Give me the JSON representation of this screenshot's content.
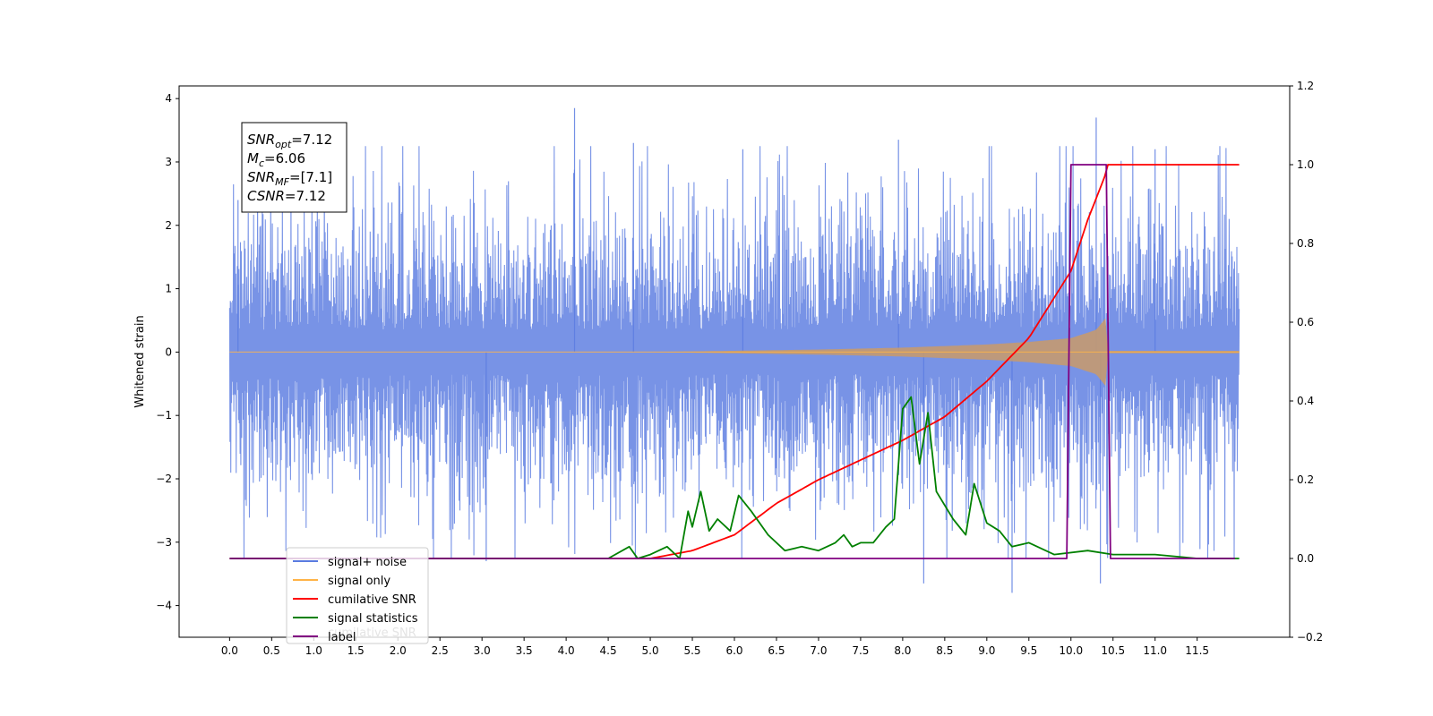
{
  "chart_data": {
    "type": "line",
    "ylabel": "Whitened strain",
    "left_axis": {
      "ylim": [
        -4.5,
        4.2
      ],
      "ticks": [
        4,
        3,
        2,
        1,
        0,
        -1,
        -2,
        -3,
        -4
      ],
      "tick_labels": [
        "4",
        "3",
        "2",
        "1",
        "0",
        "−1",
        "−2",
        "−3",
        "−4"
      ]
    },
    "right_axis": {
      "ylim": [
        -0.2,
        1.2
      ],
      "ticks": [
        1.2,
        1.0,
        0.8,
        0.6,
        0.4,
        0.2,
        0.0,
        -0.2
      ],
      "tick_labels": [
        "1.2",
        "1.0",
        "0.8",
        "0.6",
        "0.4",
        "0.2",
        "0.0",
        "−0.2"
      ]
    },
    "xlim": [
      -0.6,
      12.6
    ],
    "xticks": [
      0.0,
      0.5,
      1.0,
      1.5,
      2.0,
      2.5,
      3.0,
      3.5,
      4.0,
      4.5,
      5.0,
      5.5,
      6.0,
      6.5,
      7.0,
      7.5,
      8.0,
      8.5,
      9.0,
      9.5,
      10.0,
      10.5,
      11.0,
      11.5
    ],
    "xtick_labels": [
      "0.0",
      "0.5",
      "1.0",
      "1.5",
      "2.0",
      "2.5",
      "3.0",
      "3.5",
      "4.0",
      "4.5",
      "5.0",
      "5.5",
      "6.0",
      "6.5",
      "7.0",
      "7.5",
      "8.0",
      "8.5",
      "9.0",
      "9.5",
      "10.0",
      "10.5",
      "11.0",
      "11.5"
    ],
    "grid": false,
    "annotation": {
      "lines": [
        {
          "name": "SNR",
          "sub": "opt",
          "value": "=7.12"
        },
        {
          "name": "M",
          "sub": "c",
          "value": "=6.06"
        },
        {
          "name": "SNR",
          "sub": "MF",
          "value": "=[7.1]"
        },
        {
          "name": "CSNR",
          "sub": "",
          "value": "=7.12"
        }
      ]
    },
    "legend": {
      "position": "lower-left",
      "entries": [
        {
          "label": "signal+ noise",
          "color": "#5a7be0"
        },
        {
          "label": "signal only",
          "color": "#ffb347"
        },
        {
          "label": "cumilative SNR",
          "color": "#ff0000"
        },
        {
          "label": "signal statistics",
          "color": "#008000"
        },
        {
          "label": "label",
          "color": "#800080"
        }
      ],
      "ghost_text": "cumilative SNR"
    },
    "series": [
      {
        "name": "signal+ noise",
        "axis": "left",
        "color": "#5a7be0",
        "x_range": [
          0.0,
          12.0
        ],
        "typical_amplitude": 1.8,
        "peaks": [
          [
            0.1,
            2.4
          ],
          [
            4.1,
            3.85
          ],
          [
            4.8,
            3.3
          ],
          [
            6.1,
            3.2
          ],
          [
            7.95,
            3.35
          ],
          [
            8.25,
            -3.65
          ],
          [
            9.3,
            -3.8
          ],
          [
            10.3,
            3.7
          ],
          [
            10.35,
            -3.65
          ],
          [
            11.0,
            3.2
          ],
          [
            3.05,
            -3.3
          ]
        ]
      },
      {
        "name": "signal only",
        "axis": "left",
        "color": "#ffb347",
        "x": [
          0.0,
          5.0,
          6.0,
          7.0,
          8.0,
          9.0,
          9.5,
          10.0,
          10.3,
          10.42,
          10.43,
          12.0
        ],
        "envelope": [
          0.0,
          0.0,
          0.02,
          0.04,
          0.07,
          0.12,
          0.16,
          0.22,
          0.35,
          0.55,
          0.02,
          0.02
        ]
      },
      {
        "name": "cumilative SNR",
        "axis": "right",
        "color": "#ff0000",
        "x": [
          0.0,
          5.0,
          5.5,
          6.0,
          6.5,
          7.0,
          7.5,
          8.0,
          8.5,
          9.0,
          9.5,
          10.0,
          10.2,
          10.42,
          10.43,
          12.0
        ],
        "values": [
          0.0,
          0.0,
          0.02,
          0.06,
          0.14,
          0.2,
          0.25,
          0.3,
          0.36,
          0.45,
          0.56,
          0.73,
          0.86,
          0.98,
          1.0,
          1.0
        ]
      },
      {
        "name": "signal statistics",
        "axis": "right",
        "color": "#008000",
        "x": [
          0.0,
          4.0,
          4.5,
          4.75,
          4.85,
          5.0,
          5.2,
          5.35,
          5.45,
          5.5,
          5.6,
          5.7,
          5.8,
          5.95,
          6.05,
          6.2,
          6.4,
          6.6,
          6.8,
          7.0,
          7.2,
          7.3,
          7.4,
          7.5,
          7.65,
          7.8,
          7.9,
          8.0,
          8.1,
          8.2,
          8.3,
          8.4,
          8.6,
          8.75,
          8.85,
          9.0,
          9.15,
          9.3,
          9.5,
          9.8,
          10.2,
          10.5,
          11.0,
          11.5,
          12.0
        ],
        "values": [
          0.0,
          0.0,
          0.0,
          0.03,
          0.0,
          0.01,
          0.03,
          0.0,
          0.12,
          0.08,
          0.17,
          0.07,
          0.1,
          0.07,
          0.16,
          0.12,
          0.06,
          0.02,
          0.03,
          0.02,
          0.04,
          0.06,
          0.03,
          0.04,
          0.04,
          0.08,
          0.1,
          0.38,
          0.41,
          0.24,
          0.37,
          0.17,
          0.1,
          0.06,
          0.19,
          0.09,
          0.07,
          0.03,
          0.04,
          0.01,
          0.02,
          0.01,
          0.01,
          0.0,
          0.0
        ]
      },
      {
        "name": "label",
        "axis": "right",
        "color": "#800080",
        "x": [
          0.0,
          9.95,
          10.0,
          10.42,
          10.47,
          11.95
        ],
        "values": [
          0.0,
          0.0,
          1.0,
          1.0,
          0.0,
          0.0
        ]
      }
    ]
  }
}
